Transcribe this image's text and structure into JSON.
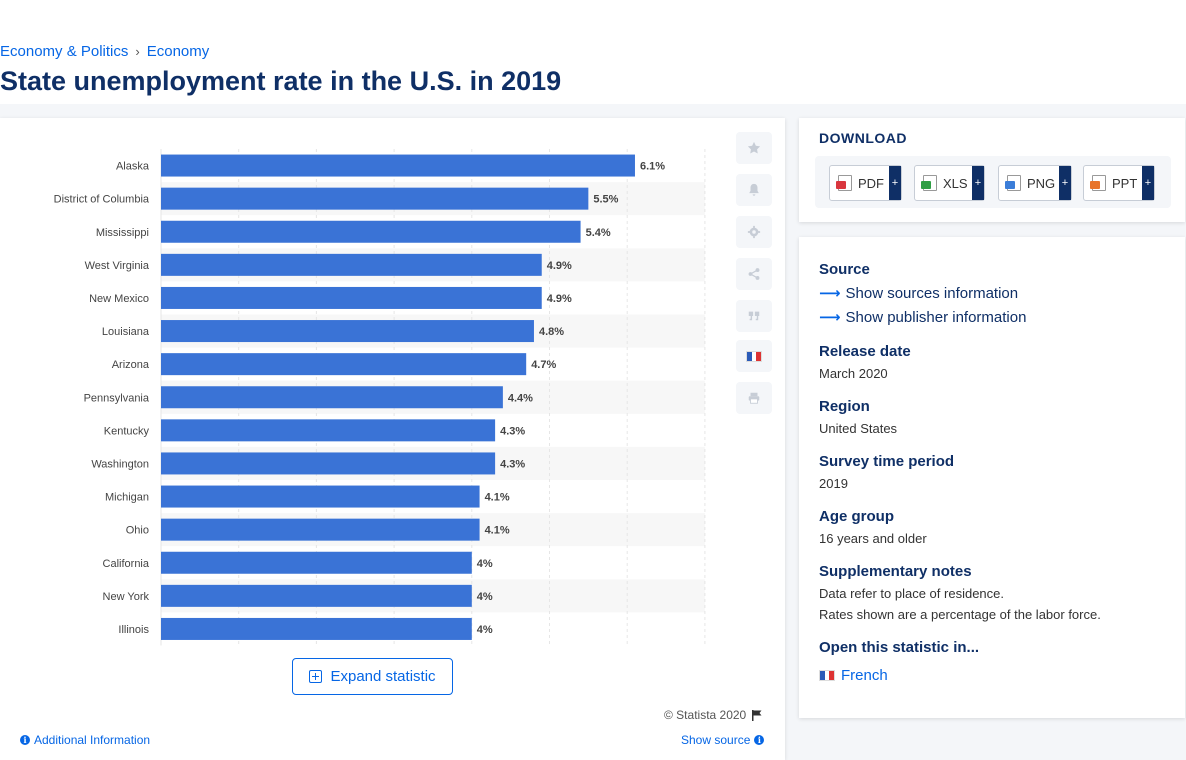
{
  "breadcrumb": {
    "first": "Economy & Politics",
    "separator": "›",
    "second": "Economy"
  },
  "page_title": "State unemployment rate in the U.S. in 2019",
  "chart_data": {
    "type": "bar",
    "orientation": "horizontal",
    "categories": [
      "Alaska",
      "District of Columbia",
      "Mississippi",
      "West Virginia",
      "New Mexico",
      "Louisiana",
      "Arizona",
      "Pennsylvania",
      "Kentucky",
      "Washington",
      "Michigan",
      "Ohio",
      "California",
      "New York",
      "Illinois"
    ],
    "values": [
      6.1,
      5.5,
      5.4,
      4.9,
      4.9,
      4.8,
      4.7,
      4.4,
      4.3,
      4.3,
      4.1,
      4.1,
      4.0,
      4.0,
      4.0
    ],
    "data_labels": [
      "6.1%",
      "5.5%",
      "5.4%",
      "4.9%",
      "4.9%",
      "4.8%",
      "4.7%",
      "4.4%",
      "4.3%",
      "4.3%",
      "4.1%",
      "4.1%",
      "4%",
      "4%",
      "4%"
    ],
    "xlim": [
      0,
      7
    ],
    "grid": true,
    "bar_color": "#3a73d6"
  },
  "toolbar": {
    "favorite_icon": "star-icon",
    "notify_icon": "bell-icon",
    "settings_icon": "gear-icon",
    "share_icon": "share-icon",
    "cite_icon": "quote-icon",
    "language_icon": "french-flag-icon",
    "print_icon": "printer-icon"
  },
  "expand_label": "Expand statistic",
  "copyright": "© Statista 2020",
  "additional_info": "Additional Information",
  "show_source": "Show source",
  "download": {
    "title": "DOWNLOAD",
    "buttons": [
      {
        "label": "PDF",
        "plus": "+",
        "color": "#d9363e"
      },
      {
        "label": "XLS",
        "plus": "+",
        "color": "#2f9e44"
      },
      {
        "label": "PNG",
        "plus": "+",
        "color": "#3b7dd8"
      },
      {
        "label": "PPT",
        "plus": "+",
        "color": "#e8742a"
      }
    ]
  },
  "details": {
    "source_heading": "Source",
    "sources_link": "Show sources information",
    "publisher_link": "Show publisher information",
    "release_heading": "Release date",
    "release_value": "March 2020",
    "region_heading": "Region",
    "region_value": "United States",
    "survey_heading": "Survey time period",
    "survey_value": "2019",
    "age_heading": "Age group",
    "age_value": "16 years and older",
    "notes_heading": "Supplementary notes",
    "notes_line1": "Data refer to place of residence.",
    "notes_line2": "Rates shown are a percentage of the labor force.",
    "open_heading": "Open this statistic in...",
    "open_french": "French"
  },
  "colors": {
    "accent": "#0666e5",
    "title": "#0f2f66",
    "bar": "#3a73d6"
  }
}
